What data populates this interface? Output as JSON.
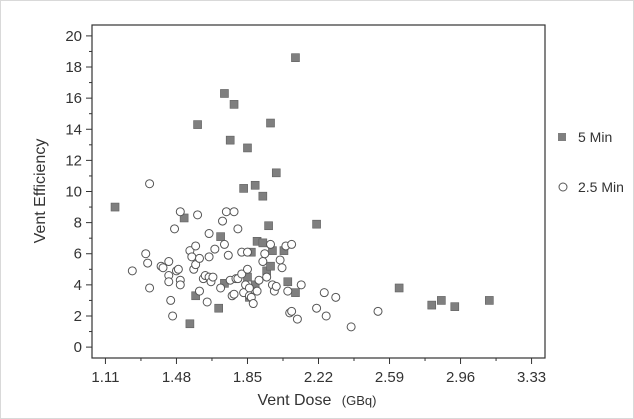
{
  "chart_data": {
    "type": "scatter",
    "xlabel": "Vent Dose",
    "xlabel_unit": "(GBq)",
    "ylabel": "Vent Efficiency",
    "xlim": [
      1.04,
      3.4
    ],
    "ylim": [
      -0.7,
      20.7
    ],
    "x_ticks": [
      "1.11",
      "1.48",
      "1.85",
      "2.22",
      "2.59",
      "2.96",
      "3.33"
    ],
    "y_ticks": [
      "0",
      "2",
      "4",
      "6",
      "8",
      "10",
      "12",
      "14",
      "16",
      "18",
      "20"
    ],
    "grid": false,
    "legend_position": "right",
    "series": [
      {
        "name": "5 Min",
        "marker": "square",
        "color": "#7f7f7f",
        "points": [
          [
            1.16,
            9.0
          ],
          [
            1.52,
            8.3
          ],
          [
            1.55,
            1.5
          ],
          [
            1.58,
            3.3
          ],
          [
            1.59,
            14.3
          ],
          [
            1.7,
            2.5
          ],
          [
            1.71,
            7.1
          ],
          [
            1.73,
            4.1
          ],
          [
            1.73,
            16.3
          ],
          [
            1.76,
            13.3
          ],
          [
            1.78,
            15.6
          ],
          [
            1.83,
            10.2
          ],
          [
            1.85,
            12.8
          ],
          [
            1.85,
            4.5
          ],
          [
            1.86,
            3.2
          ],
          [
            1.87,
            6.1
          ],
          [
            1.89,
            10.4
          ],
          [
            1.89,
            4.0
          ],
          [
            1.9,
            6.8
          ],
          [
            1.93,
            6.7
          ],
          [
            1.93,
            9.7
          ],
          [
            1.95,
            4.9
          ],
          [
            1.96,
            7.8
          ],
          [
            1.97,
            14.4
          ],
          [
            1.97,
            5.2
          ],
          [
            1.98,
            6.2
          ],
          [
            2.0,
            11.2
          ],
          [
            2.04,
            6.2
          ],
          [
            2.06,
            4.2
          ],
          [
            2.1,
            3.5
          ],
          [
            2.1,
            18.6
          ],
          [
            2.21,
            7.9
          ],
          [
            2.64,
            3.8
          ],
          [
            2.81,
            2.7
          ],
          [
            2.86,
            3.0
          ],
          [
            2.93,
            2.6
          ],
          [
            3.11,
            3.0
          ]
        ]
      },
      {
        "name": "2.5 Min",
        "marker": "circle",
        "color": "#555555",
        "points": [
          [
            1.25,
            4.9
          ],
          [
            1.32,
            6.0
          ],
          [
            1.33,
            5.4
          ],
          [
            1.34,
            3.8
          ],
          [
            1.34,
            10.5
          ],
          [
            1.4,
            5.2
          ],
          [
            1.41,
            5.1
          ],
          [
            1.44,
            4.6
          ],
          [
            1.44,
            4.2
          ],
          [
            1.44,
            5.5
          ],
          [
            1.45,
            3.0
          ],
          [
            1.46,
            2.0
          ],
          [
            1.47,
            7.6
          ],
          [
            1.48,
            4.9
          ],
          [
            1.49,
            5.0
          ],
          [
            1.5,
            4.3
          ],
          [
            1.5,
            8.7
          ],
          [
            1.5,
            4.0
          ],
          [
            1.55,
            6.2
          ],
          [
            1.56,
            5.8
          ],
          [
            1.57,
            5.0
          ],
          [
            1.58,
            5.3
          ],
          [
            1.58,
            6.5
          ],
          [
            1.59,
            8.5
          ],
          [
            1.6,
            5.7
          ],
          [
            1.6,
            3.6
          ],
          [
            1.62,
            4.4
          ],
          [
            1.63,
            4.6
          ],
          [
            1.64,
            2.9
          ],
          [
            1.65,
            7.3
          ],
          [
            1.65,
            4.5
          ],
          [
            1.65,
            5.8
          ],
          [
            1.66,
            4.2
          ],
          [
            1.67,
            4.5
          ],
          [
            1.68,
            6.3
          ],
          [
            1.71,
            3.8
          ],
          [
            1.72,
            8.1
          ],
          [
            1.73,
            6.6
          ],
          [
            1.74,
            8.7
          ],
          [
            1.75,
            5.9
          ],
          [
            1.76,
            4.3
          ],
          [
            1.77,
            3.3
          ],
          [
            1.78,
            8.7
          ],
          [
            1.78,
            3.4
          ],
          [
            1.79,
            4.4
          ],
          [
            1.8,
            4.4
          ],
          [
            1.8,
            7.6
          ],
          [
            1.82,
            6.1
          ],
          [
            1.82,
            4.7
          ],
          [
            1.83,
            3.5
          ],
          [
            1.84,
            4.0
          ],
          [
            1.85,
            6.1
          ],
          [
            1.85,
            5.0
          ],
          [
            1.86,
            3.8
          ],
          [
            1.86,
            3.3
          ],
          [
            1.87,
            3.2
          ],
          [
            1.88,
            2.8
          ],
          [
            1.9,
            3.6
          ],
          [
            1.91,
            4.3
          ],
          [
            1.93,
            5.5
          ],
          [
            1.94,
            6.0
          ],
          [
            1.95,
            4.5
          ],
          [
            1.97,
            6.6
          ],
          [
            1.98,
            4.0
          ],
          [
            1.99,
            3.6
          ],
          [
            2.0,
            3.9
          ],
          [
            2.02,
            5.6
          ],
          [
            2.03,
            5.1
          ],
          [
            2.05,
            6.5
          ],
          [
            2.06,
            3.6
          ],
          [
            2.07,
            2.2
          ],
          [
            2.08,
            2.3
          ],
          [
            2.08,
            6.6
          ],
          [
            2.11,
            1.8
          ],
          [
            2.13,
            4.0
          ],
          [
            2.21,
            2.5
          ],
          [
            2.25,
            3.5
          ],
          [
            2.26,
            2.0
          ],
          [
            2.31,
            3.2
          ],
          [
            2.39,
            1.3
          ],
          [
            2.53,
            2.3
          ]
        ]
      }
    ]
  }
}
